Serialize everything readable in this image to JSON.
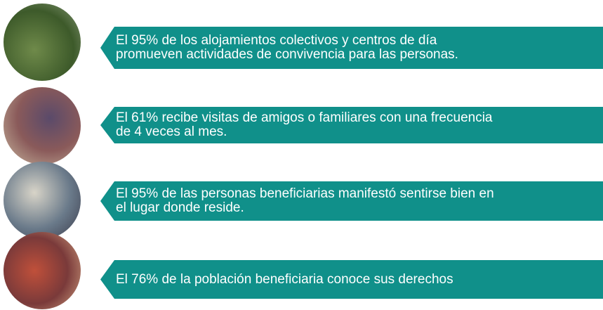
{
  "items": [
    {
      "lines": [
        "El 95% de los alojamientos colectivos y centros de día",
        "promueven actividades de convivencia para las personas."
      ]
    },
    {
      "lines": [
        "El 61% recibe visitas de amigos o familiares con una frecuencia",
        "de 4 veces al mes."
      ]
    },
    {
      "lines": [
        "El 95% de las personas beneficiarias manifestó sentirse bien en",
        "el lugar donde reside."
      ]
    },
    {
      "lines": [
        "El 76% de la población beneficiaria conoce sus derechos"
      ]
    }
  ]
}
